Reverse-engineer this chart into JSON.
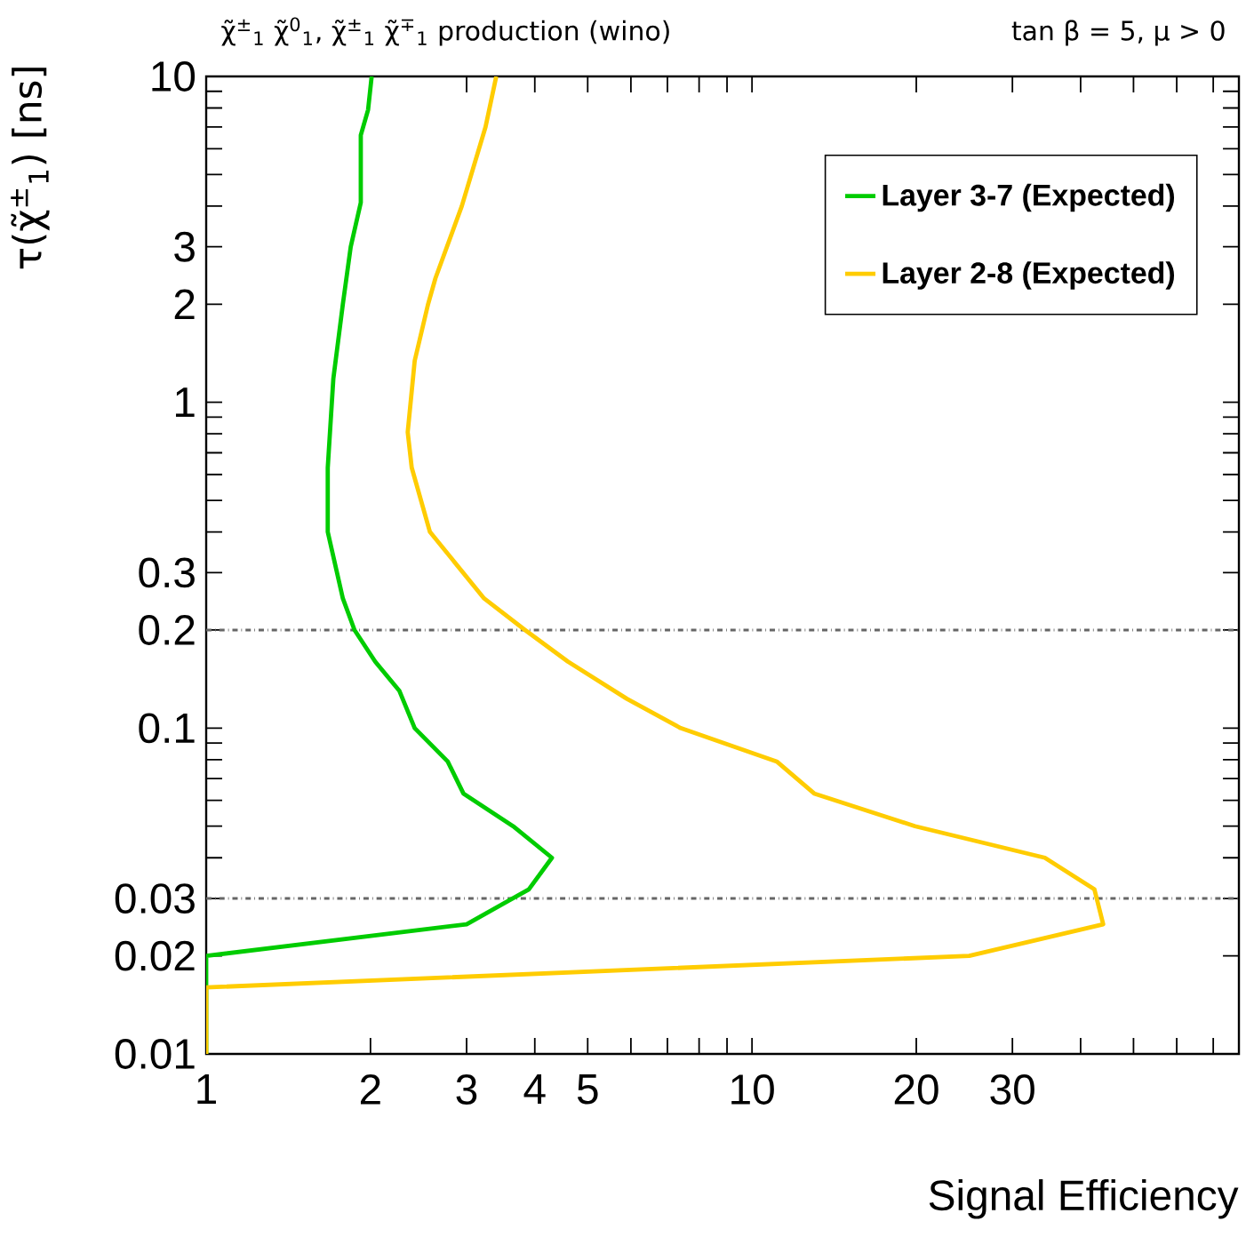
{
  "chart_data": {
    "type": "line",
    "title": "χ̃$^{±}$$_{1}$ χ̃$^{0}$$_{1}$, χ̃$^{±}$$_{1}$ χ̃$^{∓}$$_{1}$ production (wino)",
    "subtitle": "tan β = 5, μ > 0",
    "xlabel": "Signal Efficiency",
    "ylabel": "τ(χ̃$^{±}$$_{1}$) [ns]",
    "log": "xy",
    "legend": "top right",
    "grid": false,
    "xlim": [
      1,
      78
    ],
    "ylim": [
      0.01,
      10
    ],
    "xticks": [
      1,
      2,
      3,
      4,
      5,
      {
        "value": 6,
        "label": null
      },
      {
        "value": 7,
        "label": null
      },
      {
        "value": 8,
        "label": null
      },
      {
        "value": 9,
        "label": null
      },
      10,
      20,
      30,
      {
        "value": 40,
        "label": null
      },
      {
        "value": 50,
        "label": null
      },
      {
        "value": 60,
        "label": null
      },
      {
        "value": 70,
        "label": null
      }
    ],
    "yticks": [
      0.01,
      0.02,
      0.03,
      {
        "value": 0.04,
        "label": null
      },
      {
        "value": 0.05,
        "label": null
      },
      {
        "value": 0.06,
        "label": null
      },
      {
        "value": 0.07,
        "label": null
      },
      {
        "value": 0.08,
        "label": null
      },
      {
        "value": 0.09,
        "label": null
      },
      0.1,
      0.2,
      0.3,
      {
        "value": 0.4,
        "label": null
      },
      {
        "value": 0.5,
        "label": null
      },
      {
        "value": 0.6,
        "label": null
      },
      {
        "value": 0.7,
        "label": null
      },
      {
        "value": 0.8,
        "label": null
      },
      {
        "value": 0.9,
        "label": null
      },
      1,
      2,
      3,
      {
        "value": 4,
        "label": null
      },
      {
        "value": 5,
        "label": null
      },
      {
        "value": 6,
        "label": null
      },
      {
        "value": 7,
        "label": null
      },
      {
        "value": 8,
        "label": null
      },
      {
        "value": 9,
        "label": null
      },
      10
    ],
    "ref_lines": [
      {
        "axis": "y",
        "value": 0.2,
        "color": "#666666",
        "line_style": "dashdot"
      },
      {
        "axis": "y",
        "value": 0.03,
        "color": "#666666",
        "line_style": "dashdot"
      }
    ],
    "series": [
      {
        "name": "Layer 3-7 (Expected)",
        "color": "#00cc00",
        "x": [
          1,
          1,
          3.0,
          3.9,
          4.3,
          3.65,
          2.96,
          2.77,
          2.41,
          2.26,
          2.04,
          1.87,
          1.78,
          1.67,
          1.67,
          1.71,
          1.78,
          1.84,
          1.92,
          1.92,
          1.98,
          2.01
        ],
        "values": [
          0.01,
          0.02,
          0.025,
          0.032,
          0.04,
          0.05,
          0.063,
          0.079,
          0.1,
          0.13,
          0.16,
          0.2,
          0.25,
          0.4,
          0.63,
          1.18,
          2.0,
          3.0,
          4.1,
          6.6,
          7.9,
          10
        ]
      },
      {
        "name": "Layer 2-8 (Expected)",
        "color": "#ffcc00",
        "x": [
          1,
          1,
          25,
          44,
          42.4,
          34.4,
          19.9,
          13.0,
          11.1,
          7.4,
          5.9,
          4.6,
          3.84,
          3.23,
          2.57,
          2.38,
          2.34,
          2.41,
          2.55,
          2.63,
          2.94,
          3.25,
          3.4
        ],
        "values": [
          0.01,
          0.016,
          0.02,
          0.025,
          0.032,
          0.04,
          0.05,
          0.063,
          0.079,
          0.1,
          0.123,
          0.16,
          0.2,
          0.25,
          0.4,
          0.63,
          0.81,
          1.34,
          2.0,
          2.4,
          4.0,
          7.0,
          10
        ]
      }
    ]
  }
}
